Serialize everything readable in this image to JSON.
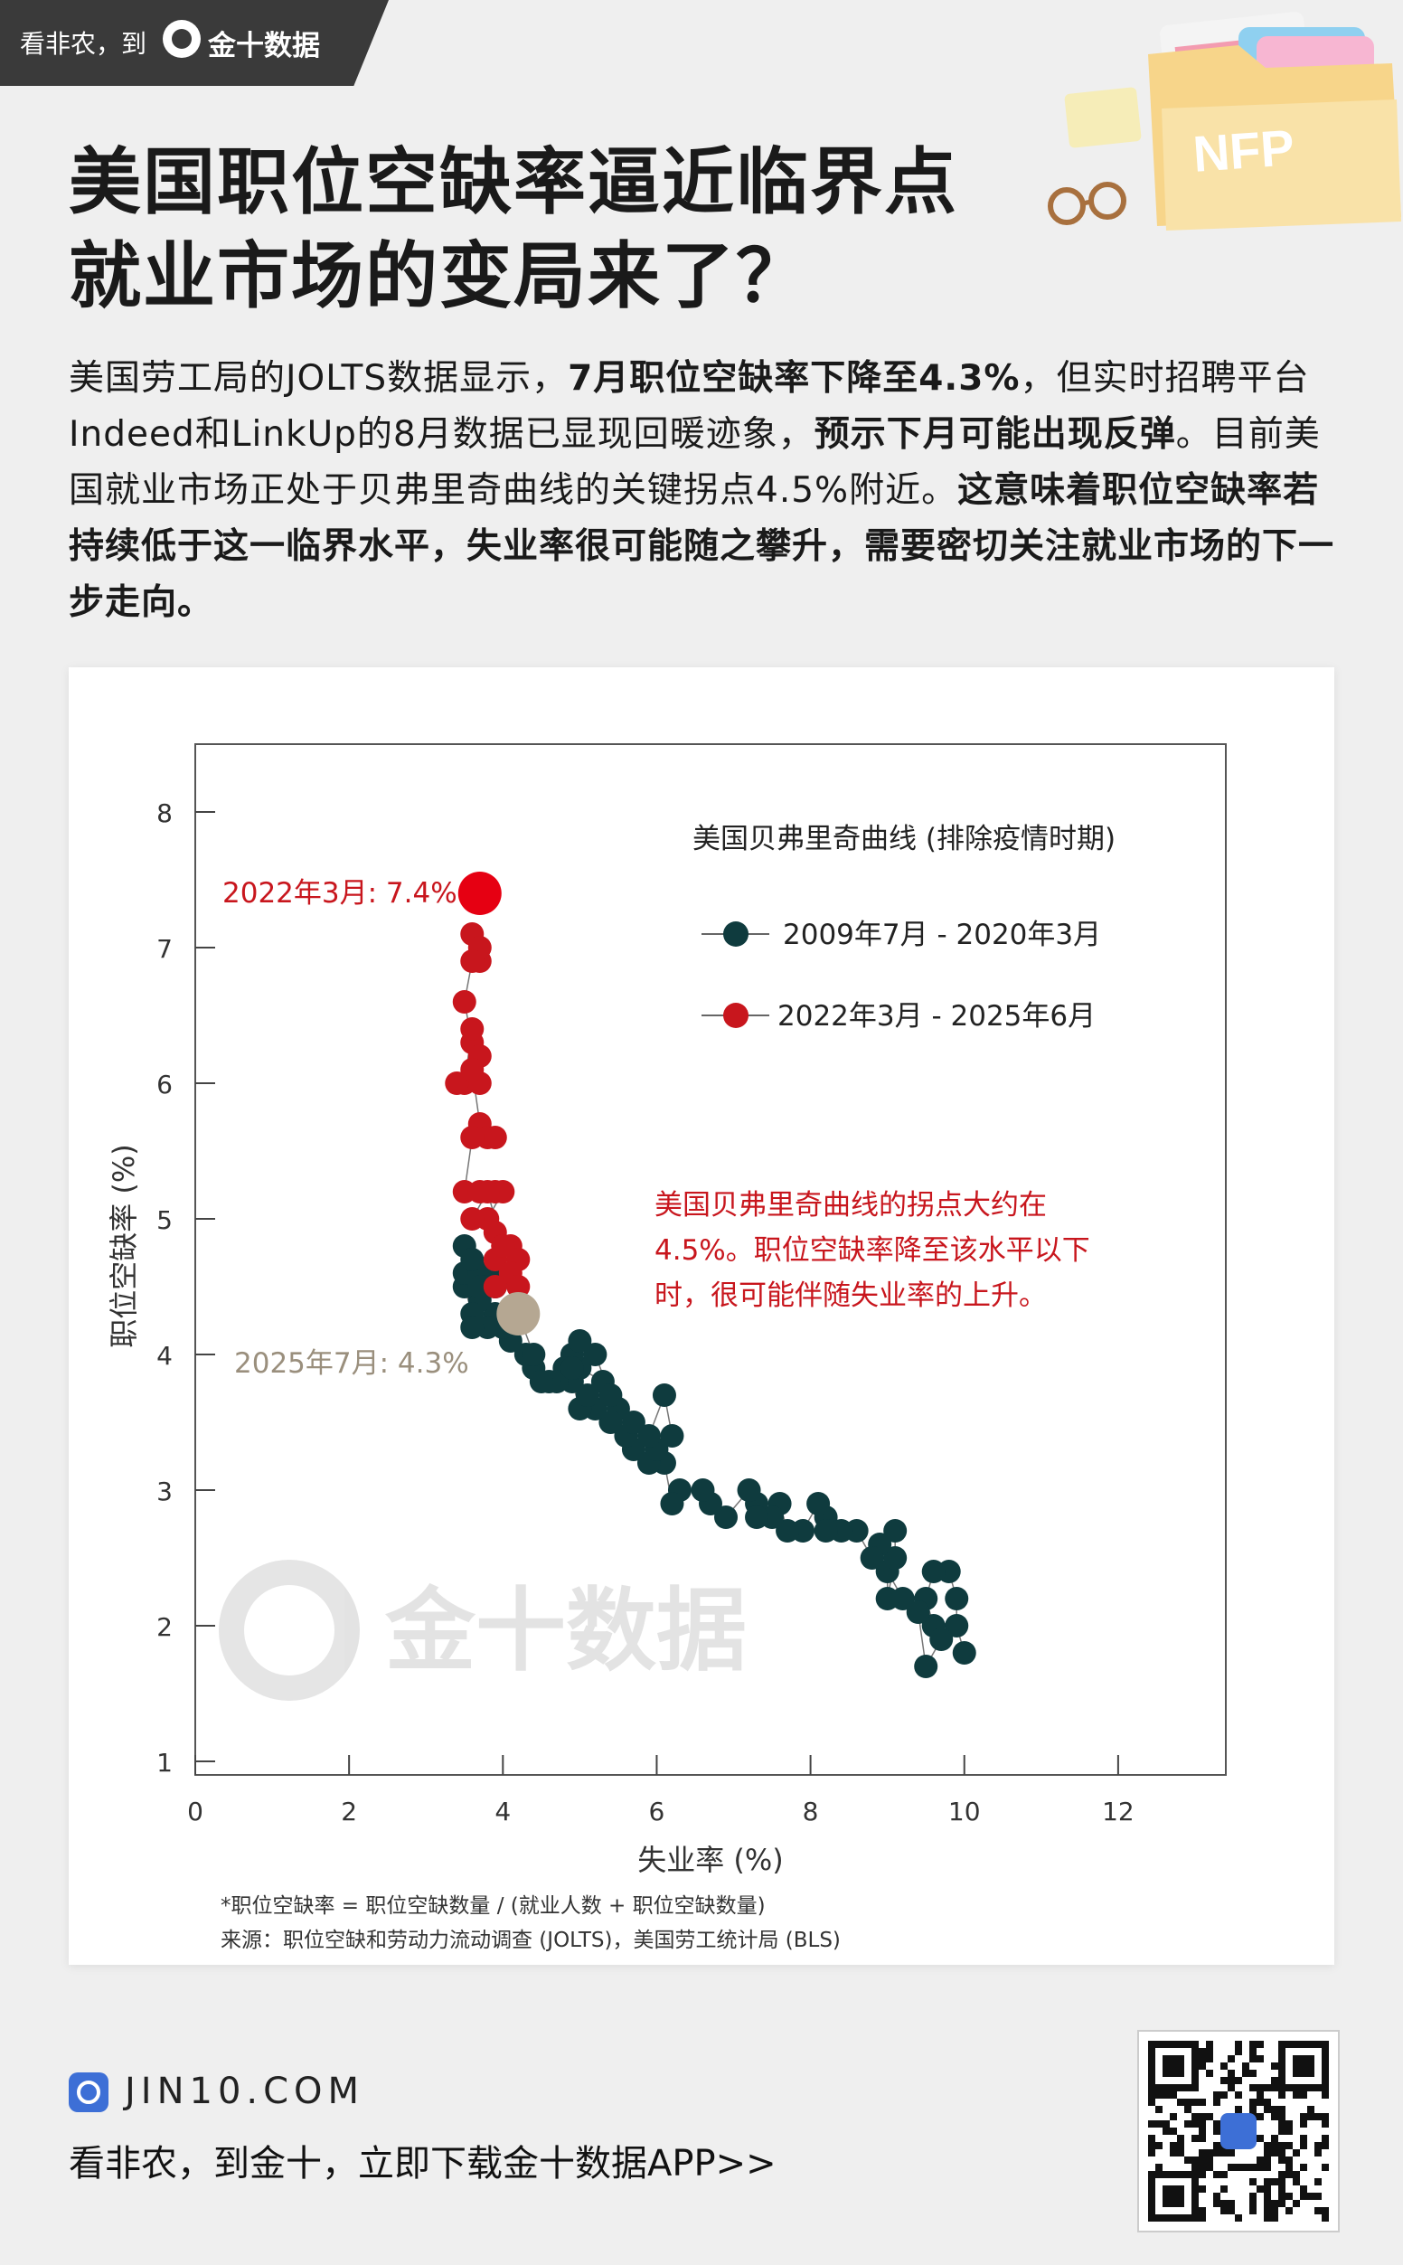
{
  "header": {
    "tagline": "看非农，到",
    "brand": "金十数据"
  },
  "deco": {
    "folder_label": "NFP"
  },
  "title": {
    "line1": "美国职位空缺率逼近临界点",
    "line2": "就业市场的变局来了？"
  },
  "intro": {
    "p1": "美国劳工局的JOLTS数据显示，",
    "p1b": "7月职位空缺率下降至4.3%",
    "p2": "，但实时招聘平台Indeed和LinkUp的8月数据已显现回暖迹象，",
    "p2b": "预示下月可能出现反弹",
    "p3": "。目前美国就业市场正处于贝弗里奇曲线的关键拐点4.5%附近。",
    "p3b": "这意味着职位空缺率若持续低于这一临界水平，失业率很可能随之攀升，需要密切关注就业市场的下一步走向。"
  },
  "chart_data": {
    "type": "scatter",
    "legend_title": "美国贝弗里奇曲线 (排除疫情时期)",
    "xlabel": "失业率 (%)",
    "ylabel": "职位空缺率 (%)",
    "xlim": [
      0,
      13.4
    ],
    "ylim": [
      0.9,
      8.5
    ],
    "xticks": [
      0,
      2,
      4,
      6,
      8,
      10,
      12
    ],
    "yticks": [
      1,
      2,
      3,
      4,
      5,
      6,
      7,
      8
    ],
    "grid": false,
    "legend_position": "top-right",
    "series": [
      {
        "name": "2009年7月 - 2020年3月",
        "color": "#0f3b3e",
        "points": [
          [
            10.0,
            1.8
          ],
          [
            9.9,
            2.0
          ],
          [
            9.9,
            2.2
          ],
          [
            9.8,
            2.4
          ],
          [
            9.6,
            2.4
          ],
          [
            9.5,
            2.2
          ],
          [
            9.6,
            2.0
          ],
          [
            9.7,
            1.9
          ],
          [
            9.5,
            1.7
          ],
          [
            9.4,
            2.1
          ],
          [
            9.2,
            2.2
          ],
          [
            9.0,
            2.4
          ],
          [
            9.0,
            2.2
          ],
          [
            9.1,
            2.5
          ],
          [
            9.1,
            2.7
          ],
          [
            8.9,
            2.6
          ],
          [
            8.8,
            2.5
          ],
          [
            8.6,
            2.7
          ],
          [
            8.2,
            2.8
          ],
          [
            8.4,
            2.7
          ],
          [
            8.2,
            2.7
          ],
          [
            8.1,
            2.9
          ],
          [
            7.9,
            2.7
          ],
          [
            7.7,
            2.7
          ],
          [
            7.6,
            2.9
          ],
          [
            7.5,
            2.8
          ],
          [
            7.3,
            2.9
          ],
          [
            7.3,
            2.8
          ],
          [
            7.2,
            3.0
          ],
          [
            6.9,
            2.8
          ],
          [
            6.7,
            2.9
          ],
          [
            6.6,
            3.0
          ],
          [
            6.3,
            3.0
          ],
          [
            6.2,
            2.9
          ],
          [
            6.1,
            3.2
          ],
          [
            5.9,
            3.2
          ],
          [
            5.7,
            3.3
          ],
          [
            5.6,
            3.4
          ],
          [
            5.5,
            3.6
          ],
          [
            5.7,
            3.5
          ],
          [
            6.0,
            3.3
          ],
          [
            6.2,
            3.4
          ],
          [
            6.1,
            3.7
          ],
          [
            5.9,
            3.4
          ],
          [
            5.4,
            3.5
          ],
          [
            5.2,
            3.6
          ],
          [
            5.0,
            3.6
          ],
          [
            4.9,
            3.8
          ],
          [
            5.1,
            3.7
          ],
          [
            5.3,
            3.8
          ],
          [
            5.0,
            3.9
          ],
          [
            4.9,
            4.0
          ],
          [
            4.8,
            3.9
          ],
          [
            4.7,
            3.8
          ],
          [
            4.6,
            3.8
          ],
          [
            4.4,
            3.9
          ],
          [
            4.3,
            4.0
          ],
          [
            4.1,
            4.1
          ],
          [
            4.0,
            4.2
          ],
          [
            3.9,
            4.3
          ],
          [
            3.8,
            4.2
          ],
          [
            3.7,
            4.4
          ],
          [
            3.6,
            4.3
          ],
          [
            3.5,
            4.5
          ],
          [
            3.6,
            4.6
          ],
          [
            3.5,
            4.6
          ],
          [
            3.7,
            4.6
          ],
          [
            3.8,
            4.5
          ],
          [
            3.5,
            4.8
          ],
          [
            3.7,
            4.5
          ],
          [
            3.6,
            4.7
          ],
          [
            3.6,
            4.2
          ],
          [
            3.9,
            4.5
          ],
          [
            4.0,
            4.6
          ],
          [
            4.4,
            4.0
          ],
          [
            4.5,
            3.8
          ],
          [
            4.9,
            3.9
          ],
          [
            5.0,
            4.1
          ],
          [
            5.2,
            4.0
          ],
          [
            5.4,
            3.7
          ]
        ]
      },
      {
        "name": "2022年3月 - 2025年6月",
        "color": "#c8161d",
        "points": [
          [
            3.6,
            7.1
          ],
          [
            3.7,
            6.9
          ],
          [
            3.7,
            7.0
          ],
          [
            3.6,
            6.9
          ],
          [
            3.5,
            6.6
          ],
          [
            3.6,
            6.3
          ],
          [
            3.7,
            6.2
          ],
          [
            3.6,
            6.4
          ],
          [
            3.5,
            6.0
          ],
          [
            3.7,
            6.0
          ],
          [
            3.4,
            6.0
          ],
          [
            3.6,
            6.1
          ],
          [
            3.7,
            5.7
          ],
          [
            3.8,
            5.6
          ],
          [
            3.9,
            5.6
          ],
          [
            3.6,
            5.6
          ],
          [
            3.5,
            5.2
          ],
          [
            3.7,
            5.2
          ],
          [
            3.9,
            5.2
          ],
          [
            4.0,
            5.2
          ],
          [
            3.8,
            5.0
          ],
          [
            3.9,
            4.9
          ],
          [
            4.0,
            4.8
          ],
          [
            4.1,
            4.8
          ],
          [
            3.9,
            4.7
          ],
          [
            4.2,
            4.7
          ],
          [
            4.1,
            4.6
          ],
          [
            4.2,
            4.5
          ],
          [
            3.9,
            4.5
          ],
          [
            4.0,
            4.8
          ],
          [
            3.8,
            5.2
          ],
          [
            3.6,
            5.0
          ]
        ]
      }
    ],
    "highlights": [
      {
        "label": "2022年3月: 7.4%",
        "x": 3.7,
        "y": 7.4,
        "color": "#e60012",
        "label_color": "#c8161d"
      },
      {
        "label": "2025年7月: 4.3%",
        "x": 4.2,
        "y": 4.3,
        "color": "#b5a792",
        "label_color": "#9a8f7d"
      }
    ],
    "annotation": {
      "lines": [
        "美国贝弗里奇曲线的拐点大约在",
        "4.5%。职位空缺率降至该水平以下",
        "时，很可能伴随失业率的上升。"
      ],
      "color": "#c8161d"
    }
  },
  "watermark": {
    "brand": "金十数据"
  },
  "footnotes": {
    "formula": "*职位空缺率 = 职位空缺数量 / (就业人数 + 职位空缺数量)",
    "source": "来源：职位空缺和劳动力流动调查 (JOLTS)，美国劳工统计局 (BLS)"
  },
  "footer": {
    "url": "JIN10.COM",
    "cta": "看非农，到金十，立即下载金十数据APP>>"
  }
}
